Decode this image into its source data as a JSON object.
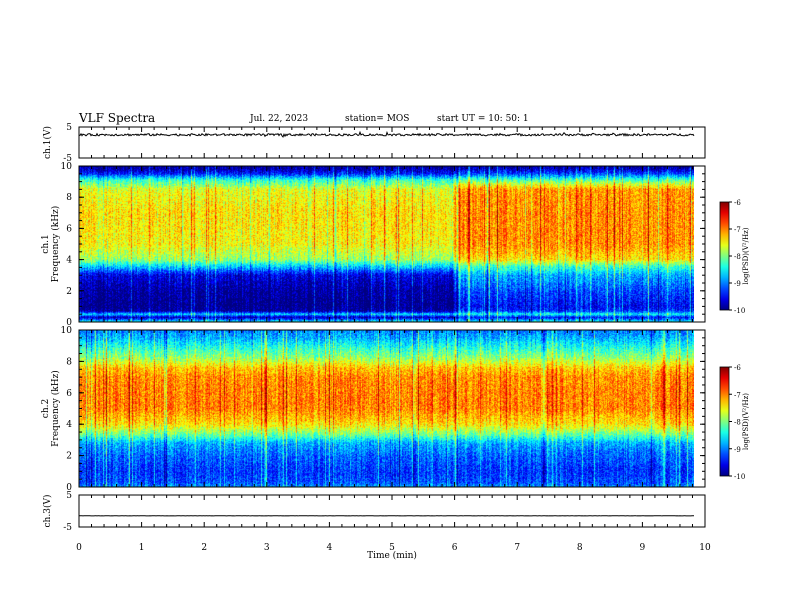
{
  "header": {
    "title": "VLF Spectra",
    "date": "Jul. 22, 2023",
    "station": "station= MOS",
    "start": "start UT = 10: 50: 1"
  },
  "chart_data": {
    "type": "heatmap",
    "xlabel": "Time (min)",
    "xlim": [
      0,
      10
    ],
    "x_ticks": [
      "0",
      "1",
      "2",
      "3",
      "4",
      "5",
      "6",
      "7",
      "8",
      "9",
      "10"
    ],
    "panels": [
      {
        "name": "ch1-voltage",
        "type": "line",
        "ylabel": "ch.1(V)",
        "ylim": [
          -5,
          5
        ],
        "y_ticks": [
          "5",
          "-5"
        ],
        "level": 2.5,
        "noise": 0.35,
        "t_end": 9.82
      },
      {
        "name": "ch1-spectrogram",
        "type": "heatmap",
        "ylabel": "ch.1",
        "ylabel2": "Frequency (kHz)",
        "ylim": [
          0,
          10
        ],
        "y_ticks": [
          "0",
          "2",
          "4",
          "6",
          "8",
          "10"
        ],
        "t_end": 9.82,
        "intensity_profile_log_psd": {
          "freq_khz": [
            0,
            0.3,
            0.5,
            0.7,
            1.0,
            2.0,
            3.0,
            3.6,
            4.0,
            5.0,
            7.0,
            8.5,
            8.8,
            9.1,
            9.5,
            9.8,
            10
          ],
          "t_0_6_min": [
            -8.4,
            -9.8,
            -8.6,
            -9.9,
            -10,
            -9.9,
            -9.6,
            -8.6,
            -7.9,
            -7.5,
            -7.4,
            -7.6,
            -8.0,
            -8.3,
            -9.4,
            -9.8,
            -9.9
          ],
          "t_6_10_min": [
            -8.4,
            -9.5,
            -8.4,
            -9.3,
            -9.5,
            -9.2,
            -8.8,
            -8.2,
            -7.4,
            -7.05,
            -7.05,
            -7.1,
            -7.6,
            -8.2,
            -9.2,
            -9.7,
            -9.9
          ]
        }
      },
      {
        "name": "ch2-spectrogram",
        "type": "heatmap",
        "ylabel": "ch.2",
        "ylabel2": "Frequency (kHz)",
        "ylim": [
          0,
          10
        ],
        "y_ticks": [
          "0",
          "2",
          "4",
          "6",
          "8",
          "10"
        ],
        "t_end": 9.82,
        "intensity_profile_log_psd": {
          "freq_khz": [
            0,
            0.3,
            1.0,
            2.0,
            2.8,
            3.4,
            4.0,
            5.0,
            6.0,
            7.0,
            7.6,
            8.2,
            8.8,
            9.5,
            10
          ],
          "t_0_10_min": [
            -8.9,
            -9.2,
            -9.3,
            -9.1,
            -8.8,
            -8.0,
            -7.4,
            -7.0,
            -7.0,
            -7.05,
            -7.3,
            -7.9,
            -8.3,
            -8.8,
            -9.0
          ]
        }
      },
      {
        "name": "ch3-voltage",
        "type": "line",
        "ylabel": "ch.3(V)",
        "ylim": [
          -5,
          5
        ],
        "y_ticks": [
          "5",
          "-5"
        ],
        "level": -1.5,
        "noise": 0.02,
        "t_end": 9.82
      }
    ],
    "colorbar": {
      "label": "log(PSD)(V²/Hz)",
      "range": [
        -10,
        -6
      ],
      "ticks": [
        "-6",
        "-7",
        "-8",
        "-9",
        "-10"
      ],
      "colormap": "jet"
    }
  }
}
